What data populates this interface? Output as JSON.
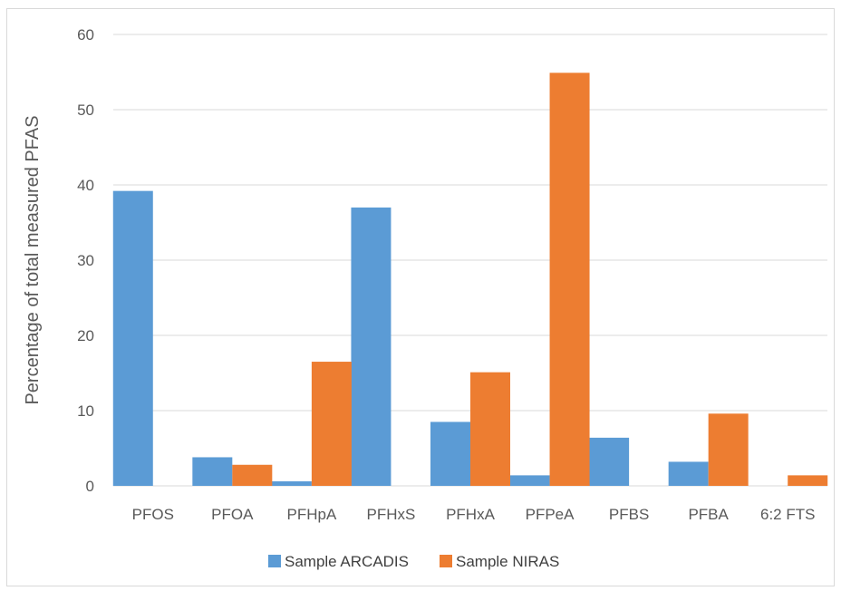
{
  "chart_data": {
    "type": "bar",
    "title": "",
    "xlabel": "",
    "ylabel": "Percentage of total measured PFAS",
    "ylim": [
      0,
      60
    ],
    "yticks": [
      0,
      10,
      20,
      30,
      40,
      50,
      60
    ],
    "grid": true,
    "legend_position": "bottom",
    "categories": [
      "PFOS",
      "PFOA",
      "PFHpA",
      "PFHxS",
      "PFHxA",
      "PFPeA",
      "PFBS",
      "PFBA",
      "6:2 FTS"
    ],
    "series": [
      {
        "name": "Sample ARCADIS",
        "color": "#5b9bd5",
        "values": [
          39.2,
          3.8,
          0.6,
          37.0,
          8.5,
          1.4,
          6.4,
          3.2,
          0
        ]
      },
      {
        "name": "Sample NIRAS",
        "color": "#ed7d31",
        "values": [
          0,
          2.8,
          16.5,
          0,
          15.1,
          54.9,
          0,
          9.6,
          1.4
        ]
      }
    ]
  }
}
